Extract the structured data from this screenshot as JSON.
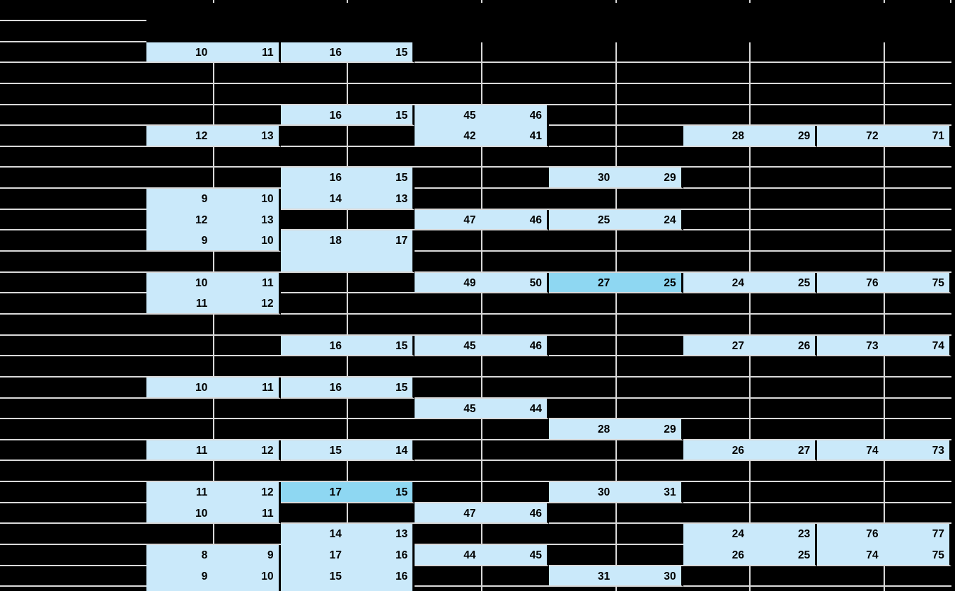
{
  "sheet": {
    "background_color": "#000000",
    "gridline_color": "#D9D9D9",
    "cell_fill_color": "#CAE9FA",
    "cell_highlight_color": "#8ED7F2",
    "cell_text_color": "#000000",
    "num_data_rows": 27,
    "num_pair_columns": 6,
    "label_column_visible_text": "",
    "blocks": [
      {
        "col": 1,
        "row": 2,
        "values": [
          [
            "10",
            "11"
          ]
        ]
      },
      {
        "col": 2,
        "row": 2,
        "values": [
          [
            "16",
            "15"
          ]
        ]
      },
      {
        "col": 2,
        "row": 5,
        "values": [
          [
            "16",
            "15"
          ]
        ]
      },
      {
        "col": 3,
        "row": 5,
        "values": [
          [
            "45",
            "46"
          ],
          [
            "42",
            "41"
          ]
        ]
      },
      {
        "col": 1,
        "row": 6,
        "values": [
          [
            "12",
            "13"
          ]
        ]
      },
      {
        "col": 5,
        "row": 6,
        "values": [
          [
            "28",
            "29"
          ]
        ]
      },
      {
        "col": 6,
        "row": 6,
        "values": [
          [
            "72",
            "71"
          ]
        ]
      },
      {
        "col": 2,
        "row": 8,
        "values": [
          [
            "16",
            "15"
          ],
          [
            "14",
            "13"
          ]
        ]
      },
      {
        "col": 4,
        "row": 8,
        "values": [
          [
            "30",
            "29"
          ]
        ]
      },
      {
        "col": 1,
        "row": 9,
        "values": [
          [
            "9",
            "10"
          ],
          [
            "12",
            "13"
          ],
          [
            "9",
            "10"
          ]
        ]
      },
      {
        "col": 3,
        "row": 10,
        "values": [
          [
            "47",
            "46"
          ]
        ]
      },
      {
        "col": 4,
        "row": 10,
        "values": [
          [
            "25",
            "24"
          ]
        ]
      },
      {
        "col": 2,
        "row": 11,
        "values": [
          [
            "18",
            "17"
          ],
          [
            "",
            ""
          ]
        ]
      },
      {
        "col": 1,
        "row": 13,
        "values": [
          [
            "10",
            "11"
          ],
          [
            "11",
            "12"
          ]
        ]
      },
      {
        "col": 3,
        "row": 13,
        "values": [
          [
            "49",
            "50"
          ]
        ]
      },
      {
        "col": 4,
        "row": 13,
        "values": [
          [
            "27",
            "25"
          ]
        ],
        "highlight": true
      },
      {
        "col": 5,
        "row": 13,
        "values": [
          [
            "24",
            "25"
          ]
        ]
      },
      {
        "col": 6,
        "row": 13,
        "values": [
          [
            "76",
            "75"
          ]
        ]
      },
      {
        "col": 2,
        "row": 16,
        "values": [
          [
            "16",
            "15"
          ]
        ]
      },
      {
        "col": 3,
        "row": 16,
        "values": [
          [
            "45",
            "46"
          ]
        ]
      },
      {
        "col": 5,
        "row": 16,
        "values": [
          [
            "27",
            "26"
          ]
        ]
      },
      {
        "col": 6,
        "row": 16,
        "values": [
          [
            "73",
            "74"
          ]
        ]
      },
      {
        "col": 1,
        "row": 18,
        "values": [
          [
            "10",
            "11"
          ]
        ]
      },
      {
        "col": 2,
        "row": 18,
        "values": [
          [
            "16",
            "15"
          ]
        ]
      },
      {
        "col": 3,
        "row": 19,
        "values": [
          [
            "45",
            "44"
          ]
        ]
      },
      {
        "col": 4,
        "row": 20,
        "values": [
          [
            "28",
            "29"
          ]
        ]
      },
      {
        "col": 1,
        "row": 21,
        "values": [
          [
            "11",
            "12"
          ]
        ]
      },
      {
        "col": 2,
        "row": 21,
        "values": [
          [
            "15",
            "14"
          ]
        ]
      },
      {
        "col": 5,
        "row": 21,
        "values": [
          [
            "26",
            "27"
          ]
        ]
      },
      {
        "col": 6,
        "row": 21,
        "values": [
          [
            "74",
            "73"
          ]
        ]
      },
      {
        "col": 1,
        "row": 23,
        "values": [
          [
            "11",
            "12"
          ],
          [
            "10",
            "11"
          ]
        ]
      },
      {
        "col": 2,
        "row": 23,
        "values": [
          [
            "17",
            "15"
          ]
        ],
        "highlight": true
      },
      {
        "col": 4,
        "row": 23,
        "values": [
          [
            "30",
            "31"
          ]
        ]
      },
      {
        "col": 3,
        "row": 24,
        "values": [
          [
            "47",
            "46"
          ]
        ]
      },
      {
        "col": 2,
        "row": 25,
        "values": [
          [
            "14",
            "13"
          ],
          [
            "17",
            "16"
          ],
          [
            "15",
            "16"
          ],
          [
            "",
            ""
          ]
        ]
      },
      {
        "col": 5,
        "row": 25,
        "values": [
          [
            "24",
            "23"
          ],
          [
            "26",
            "25"
          ]
        ]
      },
      {
        "col": 6,
        "row": 25,
        "values": [
          [
            "76",
            "77"
          ],
          [
            "74",
            "75"
          ]
        ]
      },
      {
        "col": 1,
        "row": 26,
        "values": [
          [
            "8",
            "9"
          ],
          [
            "9",
            "10"
          ],
          [
            "",
            ""
          ]
        ]
      },
      {
        "col": 3,
        "row": 26,
        "values": [
          [
            "44",
            "45"
          ]
        ]
      },
      {
        "col": 4,
        "row": 27,
        "values": [
          [
            "31",
            "30"
          ]
        ]
      }
    ]
  }
}
